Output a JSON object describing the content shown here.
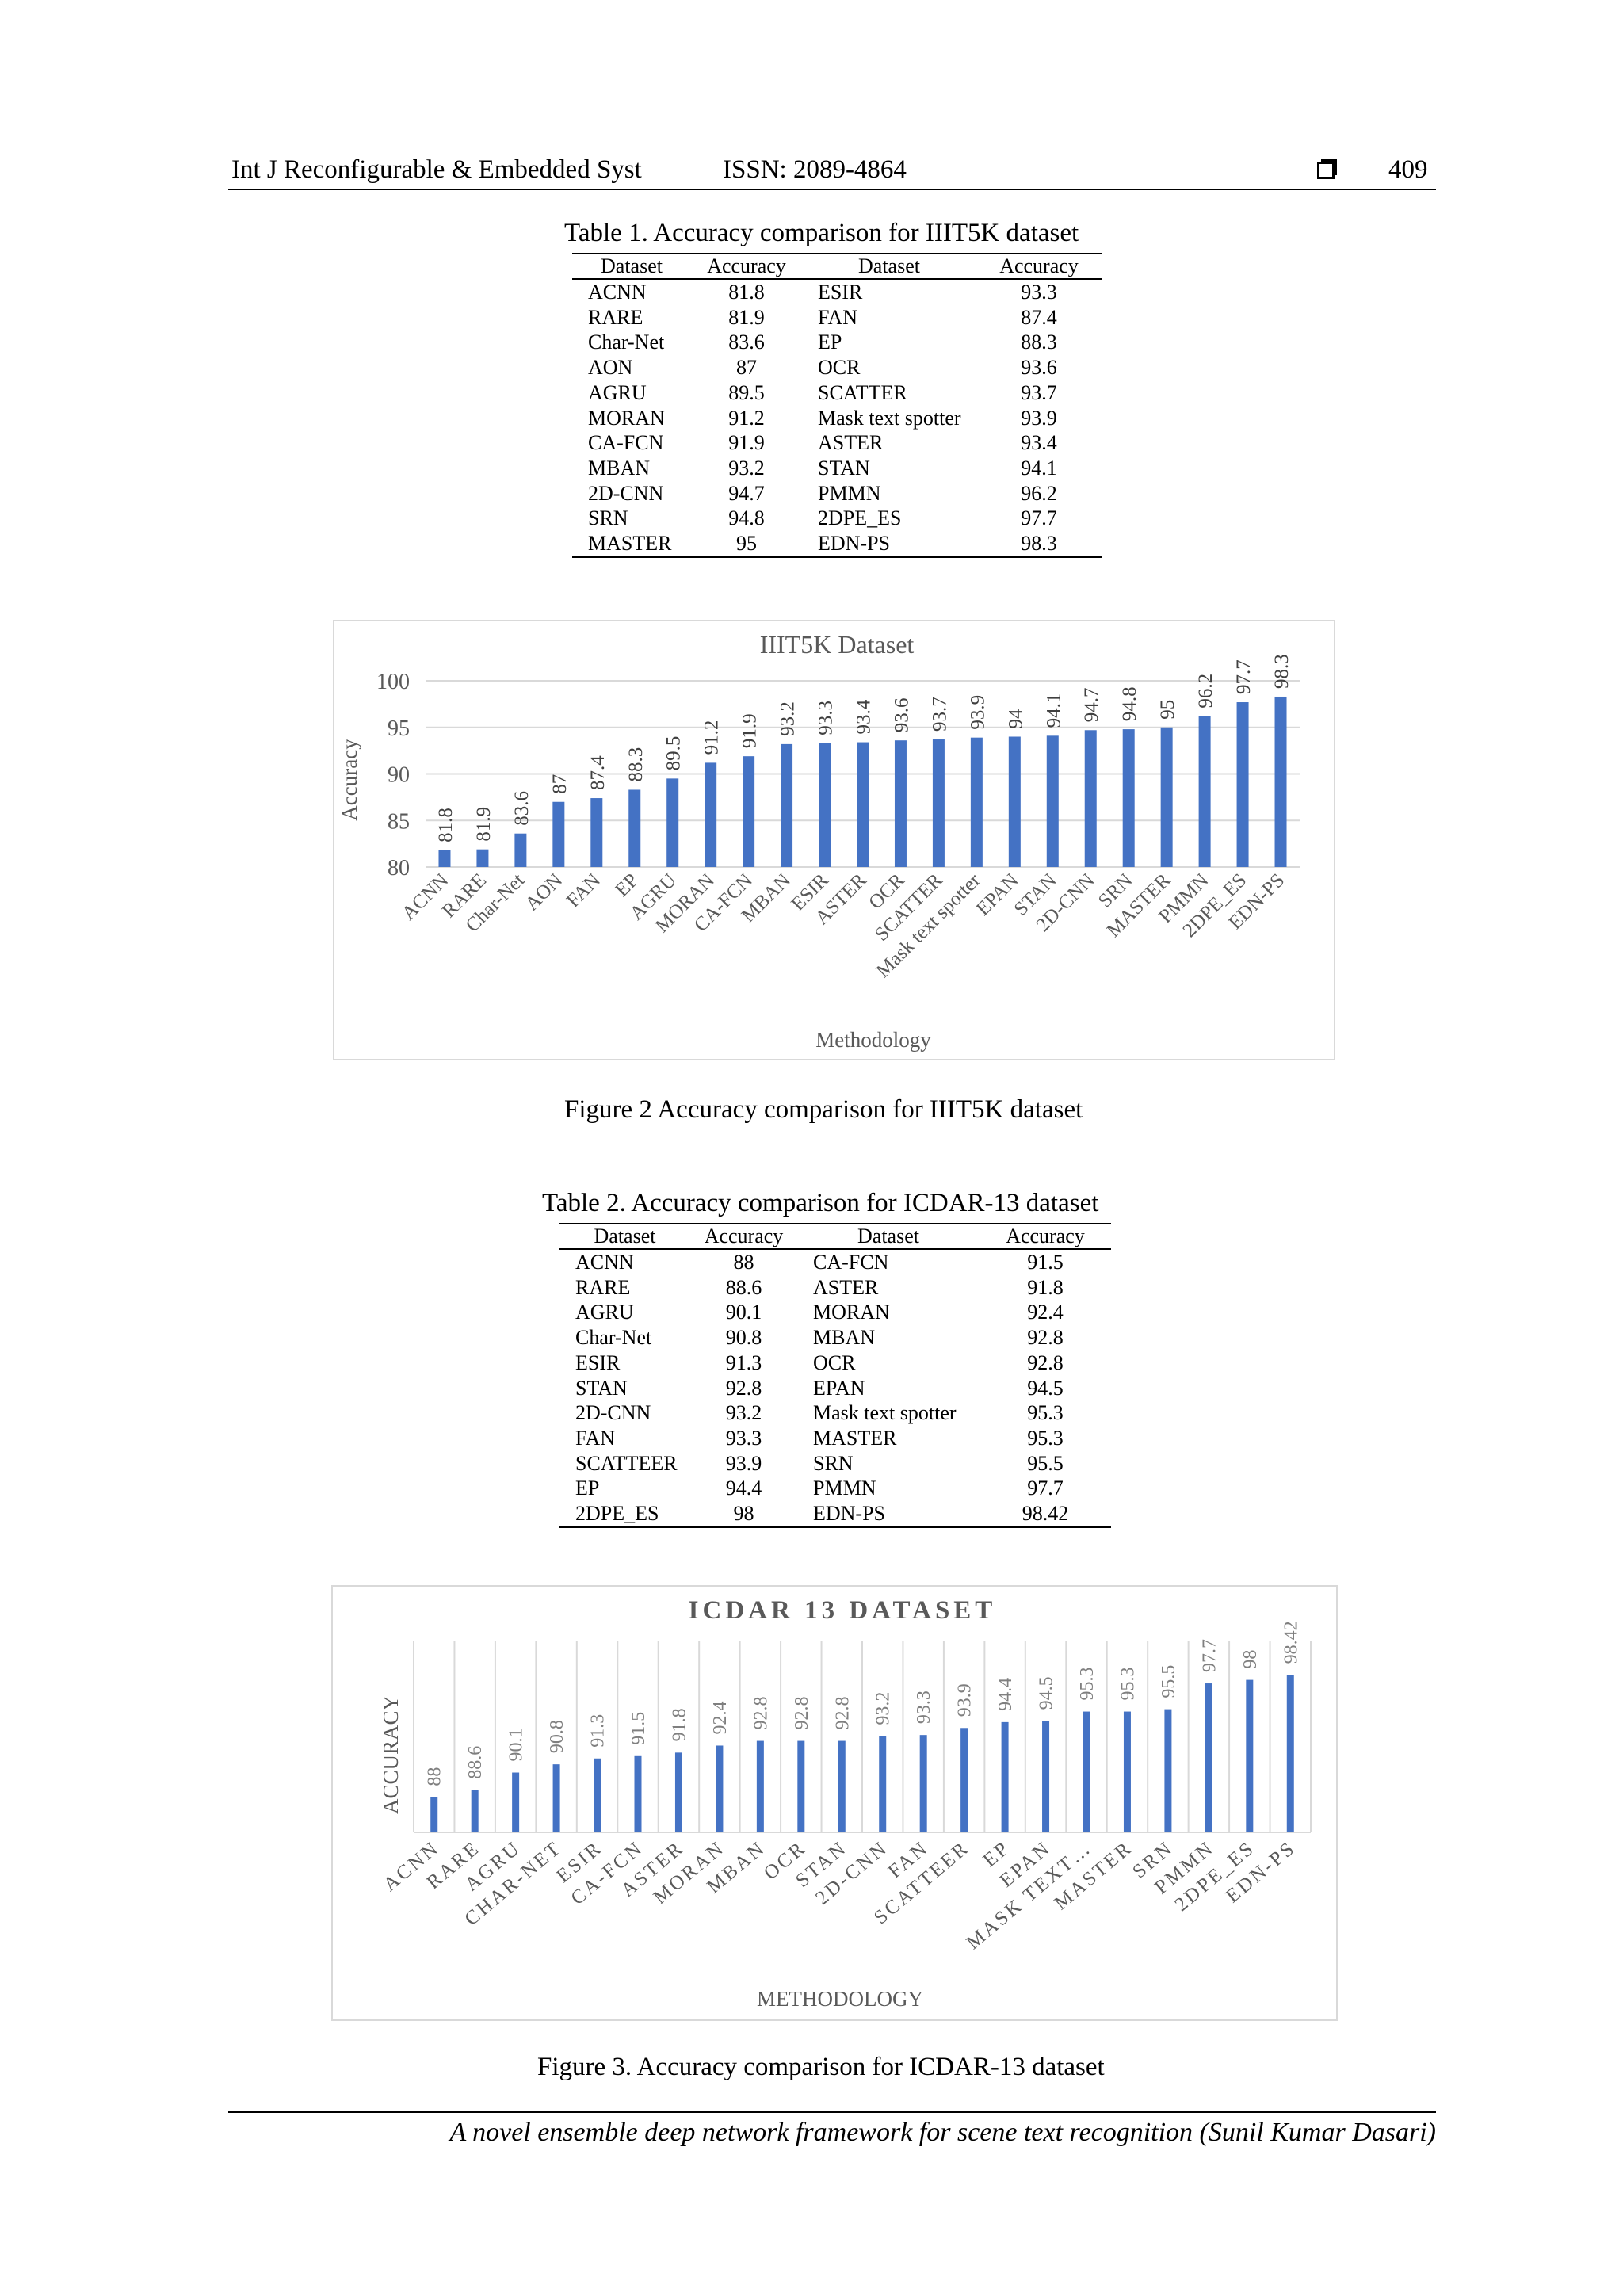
{
  "header": {
    "journal": "Int J Reconfigurable & Embedded Syst",
    "issn": "ISSN: 2089-4864",
    "page_number": "409"
  },
  "table1": {
    "caption": "Table 1. Accuracy comparison for IIIT5K dataset",
    "headers": [
      "Dataset",
      "Accuracy",
      "Dataset",
      "Accuracy"
    ],
    "rows": [
      [
        "ACNN",
        "81.8",
        "ESIR",
        "93.3"
      ],
      [
        "RARE",
        "81.9",
        "FAN",
        "87.4"
      ],
      [
        "Char-Net",
        "83.6",
        "EP",
        "88.3"
      ],
      [
        "AON",
        "87",
        "OCR",
        "93.6"
      ],
      [
        "AGRU",
        "89.5",
        "SCATTER",
        "93.7"
      ],
      [
        "MORAN",
        "91.2",
        "Mask text spotter",
        "93.9"
      ],
      [
        "CA-FCN",
        "91.9",
        "ASTER",
        "93.4"
      ],
      [
        "MBAN",
        "93.2",
        "STAN",
        "94.1"
      ],
      [
        "2D-CNN",
        "94.7",
        "PMMN",
        "96.2"
      ],
      [
        "SRN",
        "94.8",
        "2DPE_ES",
        "97.7"
      ],
      [
        "MASTER",
        "95",
        "EDN-PS",
        "98.3"
      ]
    ]
  },
  "figure2": {
    "caption": "Figure 2 Accuracy comparison for IIIT5K dataset"
  },
  "table2": {
    "caption": "Table 2. Accuracy comparison for ICDAR-13 dataset",
    "headers": [
      "Dataset",
      "Accuracy",
      "Dataset",
      "Accuracy"
    ],
    "rows": [
      [
        "ACNN",
        "88",
        "CA-FCN",
        "91.5"
      ],
      [
        "RARE",
        "88.6",
        "ASTER",
        "91.8"
      ],
      [
        "AGRU",
        "90.1",
        "MORAN",
        "92.4"
      ],
      [
        "Char-Net",
        "90.8",
        "MBAN",
        "92.8"
      ],
      [
        "ESIR",
        "91.3",
        "OCR",
        "92.8"
      ],
      [
        "STAN",
        "92.8",
        "EPAN",
        "94.5"
      ],
      [
        "2D-CNN",
        "93.2",
        "Mask text spotter",
        "95.3"
      ],
      [
        "FAN",
        "93.3",
        "MASTER",
        "95.3"
      ],
      [
        "SCATTEER",
        "93.9",
        "SRN",
        "95.5"
      ],
      [
        "EP",
        "94.4",
        "PMMN",
        "97.7"
      ],
      [
        "2DPE_ES",
        "98",
        "EDN-PS",
        "98.42"
      ]
    ]
  },
  "figure3": {
    "caption": "Figure 3. Accuracy comparison for ICDAR-13 dataset"
  },
  "footer": {
    "text": "A novel ensemble deep network framework for scene text recognition (Sunil Kumar Dasari)"
  },
  "colors": {
    "bar": "#4472c4",
    "grid": "#d9d9d9",
    "axis_text": "#595959"
  },
  "chart_data": [
    {
      "type": "bar",
      "title": "IIIT5K Dataset",
      "xlabel": "Methodology",
      "ylabel": "Accuracy",
      "ylim": [
        80,
        100
      ],
      "yticks": [
        80,
        85,
        90,
        95,
        100
      ],
      "grid": true,
      "categories": [
        "ACNN",
        "RARE",
        "Char-Net",
        "AON",
        "FAN",
        "EP",
        "AGRU",
        "MORAN",
        "CA-FCN",
        "MBAN",
        "ESIR",
        "ASTER",
        "OCR",
        "SCATTER",
        "Mask text spotter",
        "EPAN",
        "STAN",
        "2D-CNN",
        "SRN",
        "MASTER",
        "PMMN",
        "2DPE_ES",
        "EDN-PS"
      ],
      "values": [
        81.8,
        81.9,
        83.6,
        87,
        87.4,
        88.3,
        89.5,
        91.2,
        91.9,
        93.2,
        93.3,
        93.4,
        93.6,
        93.7,
        93.9,
        94,
        94.1,
        94.7,
        94.8,
        95,
        96.2,
        97.7,
        98.3
      ],
      "value_labels": [
        "81.8",
        "81.9",
        "83.6",
        "87",
        "87.4",
        "88.3",
        "89.5",
        "91.2",
        "91.9",
        "93.2",
        "93.3",
        "93.4",
        "93.6",
        "93.7",
        "93.9",
        "94",
        "94.1",
        "94.7",
        "94.8",
        "95",
        "96.2",
        "97.7",
        "98.3"
      ]
    },
    {
      "type": "bar",
      "title": "ICDAR 13 DATASET",
      "xlabel": "METHODOLOGY",
      "ylabel": "ACCURACY",
      "ylim": [
        85,
        100
      ],
      "grid": true,
      "categories": [
        "ACNN",
        "RARE",
        "AGRU",
        "CHAR-NET",
        "ESIR",
        "CA-FCN",
        "ASTER",
        "MORAN",
        "MBAN",
        "OCR",
        "STAN",
        "2D-CNN",
        "FAN",
        "SCATTEER",
        "EP",
        "EPAN",
        "MASK TEXT…",
        "MASTER",
        "SRN",
        "PMMN",
        "2DPE_ES",
        "EDN-PS"
      ],
      "values": [
        88,
        88.6,
        90.1,
        90.8,
        91.3,
        91.5,
        91.8,
        92.4,
        92.8,
        92.8,
        92.8,
        93.2,
        93.3,
        93.9,
        94.4,
        94.5,
        95.3,
        95.3,
        95.5,
        97.7,
        98,
        98.42
      ],
      "value_labels": [
        "88",
        "88.6",
        "90.1",
        "90.8",
        "91.3",
        "91.5",
        "91.8",
        "92.4",
        "92.8",
        "92.8",
        "92.8",
        "93.2",
        "93.3",
        "93.9",
        "94.4",
        "94.5",
        "95.3",
        "95.3",
        "95.5",
        "97.7",
        "98",
        "98.42"
      ]
    }
  ]
}
